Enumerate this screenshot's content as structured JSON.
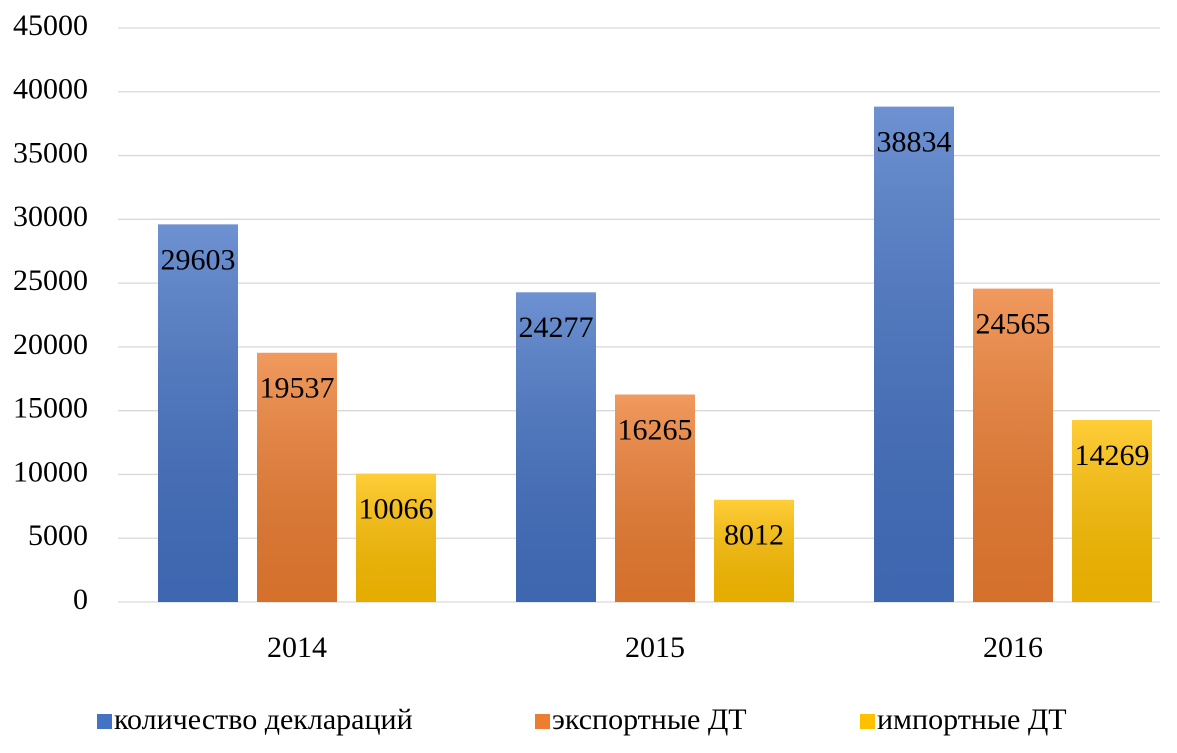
{
  "chart_data": {
    "type": "bar",
    "categories": [
      "2014",
      "2015",
      "2016"
    ],
    "series": [
      {
        "name": "количество деклараций",
        "color": "#4472c4",
        "values": [
          29603,
          24277,
          38834
        ]
      },
      {
        "name": "экспортные ДТ",
        "color": "#ed7d31",
        "values": [
          19537,
          16265,
          24565
        ]
      },
      {
        "name": "импортные ДТ",
        "color": "#ffc000",
        "values": [
          10066,
          8012,
          14269
        ]
      }
    ],
    "ylim": [
      0,
      45000
    ],
    "yticks": [
      0,
      5000,
      10000,
      15000,
      20000,
      25000,
      30000,
      35000,
      40000,
      45000
    ],
    "grid": true,
    "legend": "bottom"
  }
}
